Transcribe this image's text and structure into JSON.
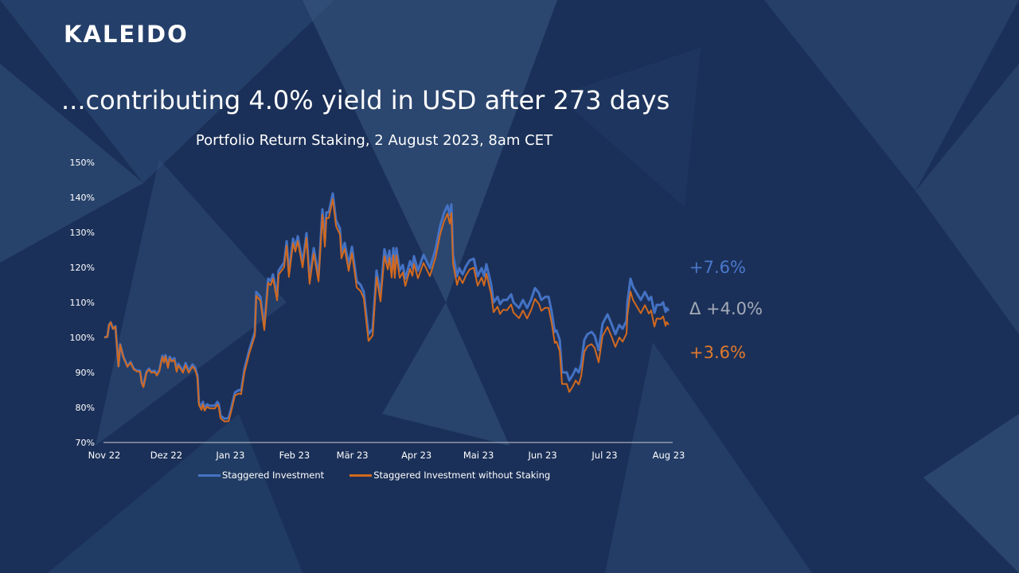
{
  "brand": {
    "logo": "KALEIDO"
  },
  "headline": "...contributing 4.0% yield in USD after 273 days",
  "colors": {
    "background": "#1b3058",
    "blue": "#4472c4",
    "orange": "#d2691e",
    "delta": "#a4abb8"
  },
  "annotations": {
    "blue_return": "+7.6%",
    "delta": "Δ +4.0%",
    "orange_return": "+3.6%"
  },
  "chart_data": {
    "type": "line",
    "title": "Portfolio Return Staking, 2 August 2023, 8am CET",
    "xlabel": "",
    "ylabel": "",
    "x_unit": "days since 1 Nov 2022",
    "xlim": [
      0,
      273
    ],
    "ylim": [
      70,
      150
    ],
    "y_ticks": [
      70,
      80,
      90,
      100,
      110,
      120,
      130,
      140,
      150
    ],
    "y_tick_labels": [
      "70%",
      "80%",
      "90%",
      "100%",
      "110%",
      "120%",
      "130%",
      "140%",
      "150%"
    ],
    "x_ticks": [
      0,
      30,
      61,
      92,
      120,
      151,
      181,
      212,
      242,
      273
    ],
    "x_tick_labels": [
      "Nov 22",
      "Dez 22",
      "Jan 23",
      "Feb 23",
      "Mär 23",
      "Apr 23",
      "Mai 23",
      "Jun 23",
      "Jul 23",
      "Aug 23"
    ],
    "grid": false,
    "legend_position": "bottom",
    "series": [
      {
        "name": "Staggered Investment",
        "color": "#4472c4"
      },
      {
        "name": "Staggered Investment without Staking",
        "color": "#d2691e"
      }
    ],
    "points_columns": [
      "day",
      "Staggered Investment",
      "Staggered Investment without Staking"
    ],
    "points": [
      [
        0,
        100.0,
        100.0
      ],
      [
        1.5,
        100.2,
        100.2
      ],
      [
        2.3,
        103.6,
        103.6
      ],
      [
        3.1,
        104.3,
        104.3
      ],
      [
        4.2,
        102.5,
        102.4
      ],
      [
        5.4,
        103.2,
        103.1
      ],
      [
        6.9,
        91.8,
        91.7
      ],
      [
        7.7,
        98.0,
        97.9
      ],
      [
        9.2,
        94.5,
        94.4
      ],
      [
        11.2,
        91.8,
        91.6
      ],
      [
        12.7,
        93.0,
        92.8
      ],
      [
        14.2,
        91.1,
        90.9
      ],
      [
        15.8,
        90.5,
        90.3
      ],
      [
        17.3,
        90.5,
        90.2
      ],
      [
        18.1,
        87.3,
        87.0
      ],
      [
        18.9,
        86.1,
        85.8
      ],
      [
        20.4,
        90.2,
        89.9
      ],
      [
        21.6,
        91.1,
        90.8
      ],
      [
        22.7,
        90.2,
        89.9
      ],
      [
        24.3,
        90.5,
        90.1
      ],
      [
        25.4,
        89.5,
        89.1
      ],
      [
        26.6,
        90.7,
        90.3
      ],
      [
        28.1,
        94.8,
        94.4
      ],
      [
        28.9,
        93.2,
        92.8
      ],
      [
        29.6,
        95.0,
        94.6
      ],
      [
        30.8,
        91.8,
        91.3
      ],
      [
        31.6,
        94.5,
        94.0
      ],
      [
        32.7,
        93.6,
        93.1
      ],
      [
        33.9,
        94.1,
        93.6
      ],
      [
        35.0,
        90.7,
        90.2
      ],
      [
        35.8,
        92.5,
        92.0
      ],
      [
        37.0,
        91.4,
        90.9
      ],
      [
        38.1,
        90.5,
        89.9
      ],
      [
        39.3,
        92.7,
        92.1
      ],
      [
        40.8,
        90.5,
        89.9
      ],
      [
        42.7,
        92.3,
        91.7
      ],
      [
        43.9,
        91.4,
        90.8
      ],
      [
        45.1,
        89.1,
        88.4
      ],
      [
        45.8,
        81.4,
        80.7
      ],
      [
        47.0,
        80.0,
        79.3
      ],
      [
        47.7,
        81.6,
        80.9
      ],
      [
        48.5,
        79.8,
        79.1
      ],
      [
        49.7,
        80.9,
        80.2
      ],
      [
        50.8,
        80.5,
        79.8
      ],
      [
        52.4,
        80.5,
        79.7
      ],
      [
        53.5,
        80.5,
        79.7
      ],
      [
        54.7,
        81.6,
        80.8
      ],
      [
        55.4,
        80.9,
        80.1
      ],
      [
        56.2,
        77.7,
        76.9
      ],
      [
        58.1,
        76.8,
        76.0
      ],
      [
        60.1,
        77.0,
        76.1
      ],
      [
        61.2,
        79.3,
        78.4
      ],
      [
        63.2,
        84.3,
        83.4
      ],
      [
        65.1,
        85.0,
        84.0
      ],
      [
        66.2,
        84.8,
        83.8
      ],
      [
        67.8,
        91.1,
        90.1
      ],
      [
        70.1,
        96.4,
        95.4
      ],
      [
        72.8,
        101.6,
        100.5
      ],
      [
        73.5,
        113.0,
        111.9
      ],
      [
        75.5,
        111.6,
        110.5
      ],
      [
        77.4,
        103.2,
        102.1
      ],
      [
        79.3,
        116.8,
        115.6
      ],
      [
        80.5,
        116.1,
        114.9
      ],
      [
        81.6,
        118.0,
        116.8
      ],
      [
        83.6,
        111.8,
        110.6
      ],
      [
        84.3,
        119.1,
        117.9
      ],
      [
        87.0,
        121.4,
        120.1
      ],
      [
        88.2,
        127.5,
        126.2
      ],
      [
        89.3,
        118.6,
        117.3
      ],
      [
        91.3,
        128.2,
        126.9
      ],
      [
        92.4,
        125.9,
        124.5
      ],
      [
        93.6,
        128.9,
        127.5
      ],
      [
        95.9,
        121.4,
        120.0
      ],
      [
        97.8,
        129.8,
        128.4
      ],
      [
        99.3,
        116.8,
        115.3
      ],
      [
        101.3,
        125.5,
        124.0
      ],
      [
        103.6,
        117.5,
        116.0
      ],
      [
        105.5,
        136.6,
        135.0
      ],
      [
        106.7,
        127.5,
        125.9
      ],
      [
        107.4,
        135.7,
        134.1
      ],
      [
        108.6,
        135.7,
        134.1
      ],
      [
        110.5,
        141.1,
        139.5
      ],
      [
        112.1,
        133.4,
        131.8
      ],
      [
        114.0,
        131.1,
        129.4
      ],
      [
        114.7,
        124.3,
        122.6
      ],
      [
        116.3,
        127.0,
        125.3
      ],
      [
        118.2,
        120.7,
        119.0
      ],
      [
        119.8,
        125.9,
        124.1
      ],
      [
        122.1,
        116.1,
        114.3
      ],
      [
        124.0,
        115.0,
        113.2
      ],
      [
        125.5,
        113.0,
        111.2
      ],
      [
        127.8,
        100.9,
        99.0
      ],
      [
        129.8,
        102.5,
        100.6
      ],
      [
        131.7,
        119.1,
        117.2
      ],
      [
        133.6,
        112.3,
        110.3
      ],
      [
        135.5,
        125.2,
        123.2
      ],
      [
        137.1,
        121.4,
        119.4
      ],
      [
        137.9,
        124.8,
        122.8
      ],
      [
        139.0,
        119.1,
        117.1
      ],
      [
        139.8,
        125.5,
        123.4
      ],
      [
        140.5,
        119.1,
        117.0
      ],
      [
        141.3,
        125.5,
        123.4
      ],
      [
        142.9,
        119.1,
        117.0
      ],
      [
        144.4,
        120.7,
        118.6
      ],
      [
        145.6,
        116.8,
        114.7
      ],
      [
        147.9,
        121.8,
        119.6
      ],
      [
        149.0,
        119.8,
        117.6
      ],
      [
        149.8,
        123.2,
        121.0
      ],
      [
        151.7,
        119.1,
        116.9
      ],
      [
        154.4,
        123.6,
        121.3
      ],
      [
        157.5,
        119.8,
        117.5
      ],
      [
        160.2,
        125.2,
        122.8
      ],
      [
        162.5,
        132.0,
        129.6
      ],
      [
        164.4,
        135.7,
        133.3
      ],
      [
        166.0,
        137.7,
        135.3
      ],
      [
        167.1,
        135.0,
        132.5
      ],
      [
        167.9,
        138.0,
        135.5
      ],
      [
        168.7,
        123.6,
        121.1
      ],
      [
        170.6,
        117.5,
        115.0
      ],
      [
        171.7,
        119.8,
        117.3
      ],
      [
        173.3,
        118.0,
        115.5
      ],
      [
        174.8,
        120.2,
        117.6
      ],
      [
        176.7,
        122.0,
        119.4
      ],
      [
        178.7,
        122.5,
        119.9
      ],
      [
        180.6,
        117.5,
        114.8
      ],
      [
        182.5,
        119.8,
        117.1
      ],
      [
        183.7,
        117.5,
        114.8
      ],
      [
        184.8,
        120.9,
        118.2
      ],
      [
        187.1,
        115.2,
        112.4
      ],
      [
        188.3,
        110.0,
        107.2
      ],
      [
        190.2,
        111.6,
        108.8
      ],
      [
        191.4,
        109.5,
        106.7
      ],
      [
        192.9,
        110.7,
        107.9
      ],
      [
        194.8,
        110.7,
        107.8
      ],
      [
        196.8,
        112.3,
        109.4
      ],
      [
        197.9,
        110.0,
        107.1
      ],
      [
        200.6,
        108.4,
        105.5
      ],
      [
        202.5,
        110.7,
        107.7
      ],
      [
        204.5,
        108.4,
        105.4
      ],
      [
        206.4,
        110.7,
        107.7
      ],
      [
        208.3,
        114.1,
        111.0
      ],
      [
        210.2,
        112.7,
        109.6
      ],
      [
        211.4,
        110.7,
        107.6
      ],
      [
        213.3,
        111.6,
        108.5
      ],
      [
        214.9,
        111.6,
        108.4
      ],
      [
        216.4,
        107.3,
        104.1
      ],
      [
        217.9,
        101.6,
        98.4
      ],
      [
        218.7,
        102.0,
        98.8
      ],
      [
        220.3,
        99.3,
        96.1
      ],
      [
        221.4,
        90.0,
        86.7
      ],
      [
        223.7,
        90.0,
        86.7
      ],
      [
        224.9,
        87.7,
        84.4
      ],
      [
        226.8,
        89.5,
        86.2
      ],
      [
        228.0,
        91.1,
        87.7
      ],
      [
        229.5,
        90.0,
        86.6
      ],
      [
        230.7,
        92.5,
        89.1
      ],
      [
        232.2,
        99.3,
        95.9
      ],
      [
        233.7,
        100.9,
        97.5
      ],
      [
        235.7,
        101.6,
        98.1
      ],
      [
        237.2,
        100.5,
        97.0
      ],
      [
        239.1,
        96.4,
        92.9
      ],
      [
        241.0,
        103.9,
        100.4
      ],
      [
        243.4,
        106.6,
        103.0
      ],
      [
        245.3,
        103.9,
        100.3
      ],
      [
        247.2,
        100.9,
        97.3
      ],
      [
        249.1,
        103.6,
        100.0
      ],
      [
        250.7,
        102.5,
        98.8
      ],
      [
        252.6,
        104.8,
        101.1
      ],
      [
        253.0,
        110.0,
        106.3
      ],
      [
        254.5,
        116.8,
        113.1
      ],
      [
        255.7,
        114.5,
        110.7
      ],
      [
        257.2,
        113.0,
        109.2
      ],
      [
        259.5,
        110.7,
        106.9
      ],
      [
        261.5,
        113.0,
        109.2
      ],
      [
        263.4,
        110.7,
        106.8
      ],
      [
        264.5,
        111.6,
        107.7
      ],
      [
        266.1,
        107.0,
        103.1
      ],
      [
        267.2,
        109.3,
        105.4
      ],
      [
        269.2,
        109.3,
        105.3
      ],
      [
        270.3,
        110.0,
        106.0
      ],
      [
        271.5,
        107.3,
        103.3
      ],
      [
        272.0,
        108.4,
        104.4
      ],
      [
        273,
        107.6,
        103.6
      ]
    ]
  }
}
